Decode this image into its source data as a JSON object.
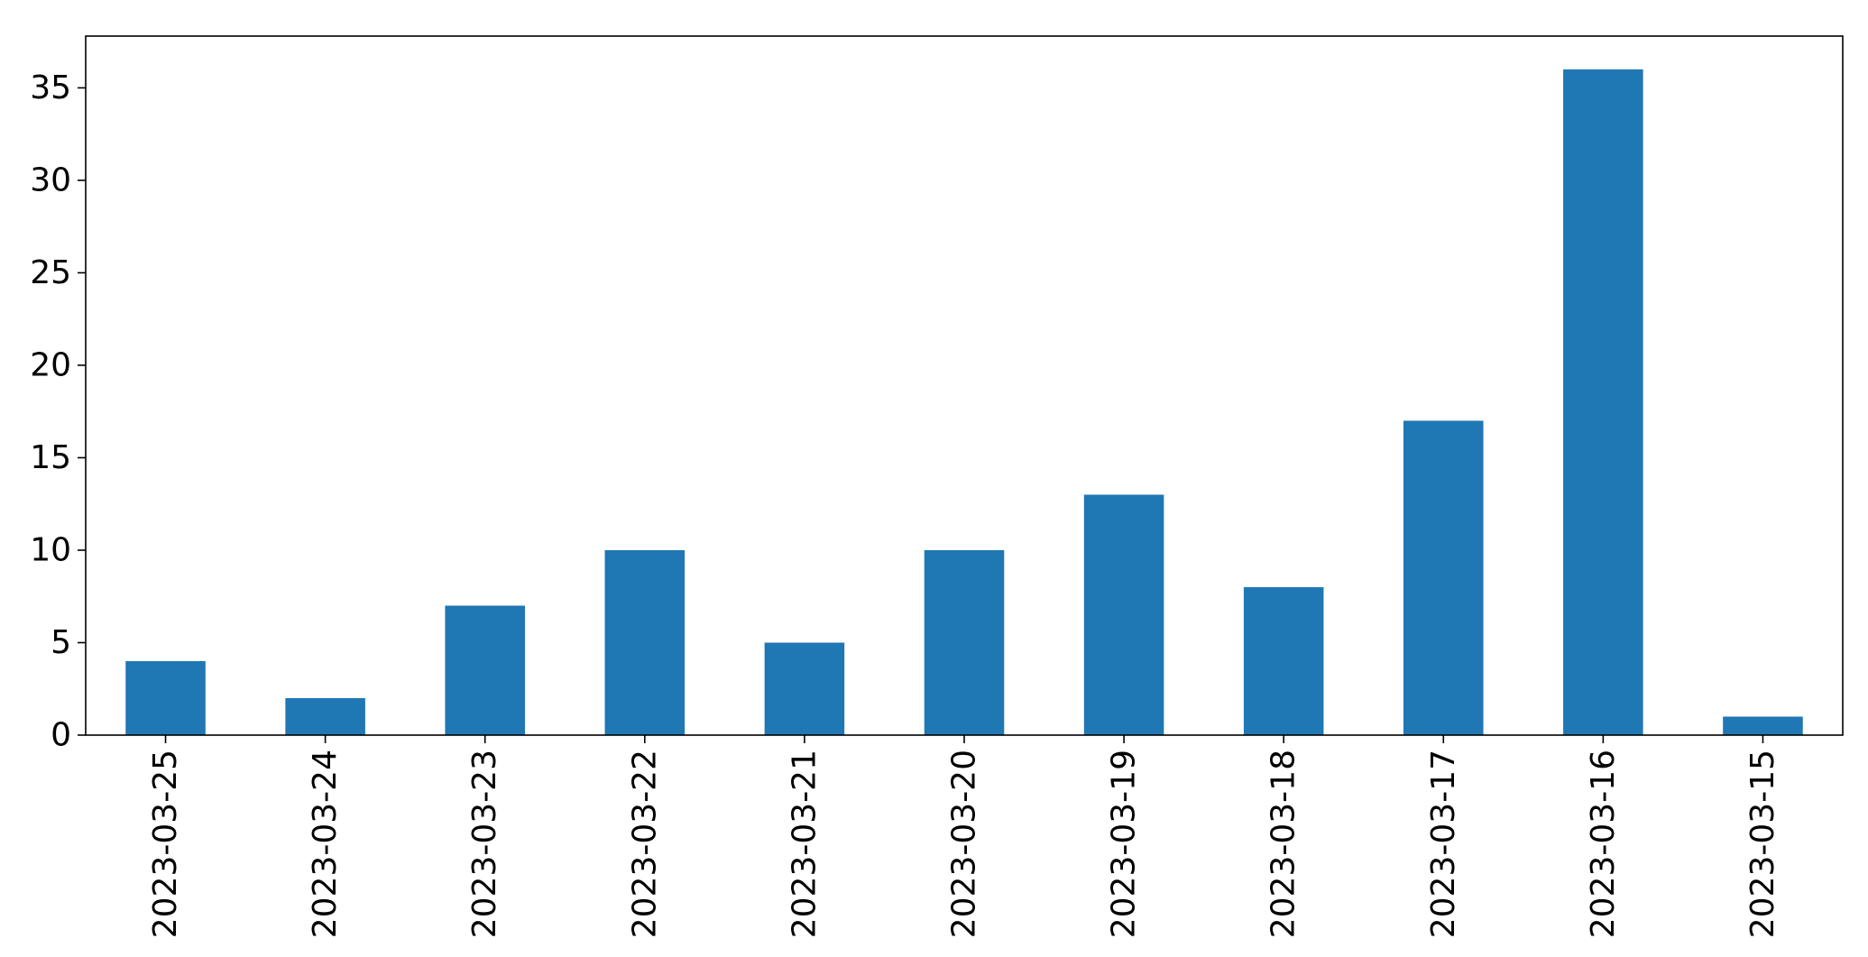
{
  "chart_data": {
    "type": "bar",
    "title": "",
    "xlabel": "",
    "ylabel": "",
    "categories": [
      "2023-03-25",
      "2023-03-24",
      "2023-03-23",
      "2023-03-22",
      "2023-03-21",
      "2023-03-20",
      "2023-03-19",
      "2023-03-18",
      "2023-03-17",
      "2023-03-16",
      "2023-03-15"
    ],
    "values": [
      4,
      2,
      7,
      10,
      5,
      10,
      13,
      8,
      17,
      36,
      1
    ],
    "ylim": [
      0,
      37.8
    ],
    "yticks": [
      0,
      5,
      10,
      15,
      20,
      25,
      30,
      35
    ],
    "ytick_labels": [
      "0",
      "5",
      "10",
      "15",
      "20",
      "25",
      "30",
      "35"
    ],
    "bar_color": "#1f77b4",
    "grid": false,
    "legend": "none"
  }
}
